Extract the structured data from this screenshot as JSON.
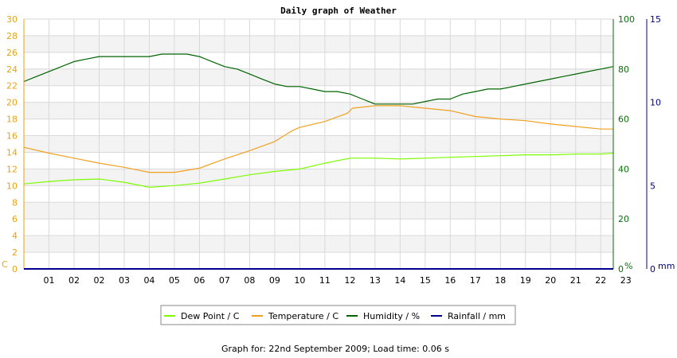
{
  "chart_data": {
    "type": "line",
    "title": "Daily graph of Weather",
    "footer": "Graph for: 22nd September 2009; Load time: 0.06 s",
    "x_ticks": [
      "01",
      "02",
      "02",
      "03",
      "04",
      "05",
      "06",
      "07",
      "08",
      "09",
      "10",
      "11",
      "12",
      "13",
      "14",
      "15",
      "16",
      "17",
      "18",
      "19",
      "20",
      "21",
      "22",
      "23"
    ],
    "axes": {
      "left": {
        "unit": "C",
        "min": 0,
        "max": 30,
        "ticks": [
          "0",
          "2",
          "4",
          "6",
          "8",
          "10",
          "12",
          "14",
          "16",
          "18",
          "20",
          "22",
          "24",
          "26",
          "28",
          "30"
        ]
      },
      "right1": {
        "unit": "%",
        "min": 0,
        "max": 100,
        "ticks": [
          "0",
          "20",
          "40",
          "60",
          "80",
          "100"
        ]
      },
      "right2": {
        "unit": "mm",
        "min": 0,
        "max": 15,
        "ticks": [
          "0",
          "5",
          "10",
          "15"
        ]
      }
    },
    "colors": {
      "dew_point": "#7cfc00",
      "temperature": "#f0a020",
      "humidity": "#006400",
      "rainfall": "#00008b",
      "temp_axis": "#e8a317",
      "hum_axis": "#0a6e0a",
      "rain_axis": "#00008b"
    },
    "series": [
      {
        "name": "Dew Point / C",
        "axis": "left",
        "color_key": "dew_point",
        "x": [
          0,
          1,
          2,
          3,
          4,
          5,
          6,
          7,
          8,
          9,
          10,
          11,
          12,
          13,
          14,
          15,
          16,
          17,
          18,
          19,
          20,
          21,
          22,
          23,
          23.5
        ],
        "y": [
          10.2,
          10.5,
          10.7,
          10.8,
          10.4,
          9.8,
          10.0,
          10.3,
          10.8,
          11.3,
          11.7,
          12.0,
          12.7,
          13.3,
          13.3,
          13.2,
          13.3,
          13.4,
          13.5,
          13.6,
          13.7,
          13.7,
          13.8,
          13.8,
          13.9
        ]
      },
      {
        "name": "Temperature / C",
        "axis": "left",
        "color_key": "temperature",
        "x": [
          0,
          1,
          2,
          3,
          4,
          5,
          6,
          7,
          8,
          9,
          10,
          10.7,
          11,
          12,
          12.9,
          13.1,
          14,
          14.5,
          15,
          16,
          17,
          18,
          19,
          20,
          21,
          22,
          23,
          23.5
        ],
        "y": [
          14.6,
          13.9,
          13.3,
          12.7,
          12.2,
          11.6,
          11.6,
          12.1,
          13.2,
          14.2,
          15.3,
          16.6,
          17.0,
          17.7,
          18.7,
          19.3,
          19.6,
          19.6,
          19.6,
          19.3,
          19.0,
          18.3,
          18.0,
          17.8,
          17.4,
          17.1,
          16.8,
          16.8
        ]
      },
      {
        "name": "Humidity / %",
        "axis": "right1",
        "color_key": "humidity",
        "x": [
          0,
          0.5,
          1,
          1.5,
          2,
          2.5,
          3,
          3.5,
          4,
          4.5,
          5,
          5.5,
          6,
          6.5,
          7,
          7.5,
          8,
          8.5,
          9,
          9.5,
          10,
          10.5,
          11,
          11.5,
          12,
          12.5,
          13,
          13.5,
          14,
          14.5,
          15,
          15.5,
          16,
          16.5,
          17,
          17.5,
          18,
          18.5,
          19,
          19.5,
          20,
          20.5,
          21,
          21.5,
          22,
          22.5,
          23,
          23.5
        ],
        "y": [
          75,
          77,
          79,
          81,
          83,
          84,
          85,
          85,
          85,
          85,
          85,
          86,
          86,
          86,
          85,
          83,
          81,
          80,
          78,
          76,
          74,
          73,
          73,
          72,
          71,
          71,
          70,
          68,
          66,
          66,
          66,
          66,
          67,
          68,
          68,
          70,
          71,
          72,
          72,
          73,
          74,
          75,
          76,
          77,
          78,
          79,
          80,
          81
        ]
      },
      {
        "name": "Rainfall / mm",
        "axis": "right2",
        "color_key": "rainfall",
        "x": [
          0,
          23.5
        ],
        "y": [
          0,
          0
        ]
      }
    ]
  }
}
